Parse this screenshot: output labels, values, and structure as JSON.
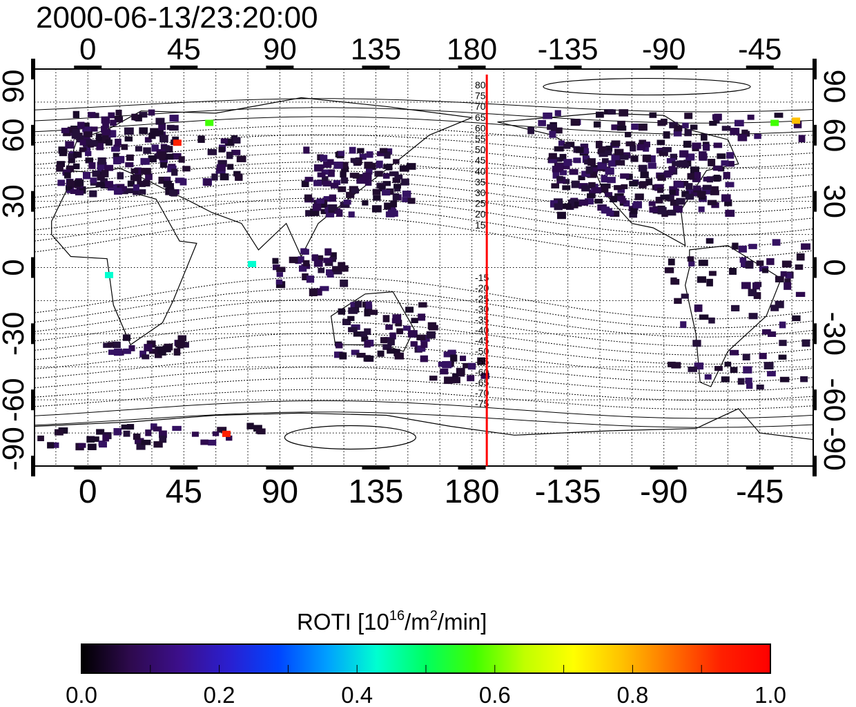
{
  "title": "2000-06-13/23:20:00",
  "map": {
    "type": "global-map",
    "projection": "cylindrical",
    "lon_range": [
      -25,
      340
    ],
    "lat_range": [
      -90,
      90
    ],
    "lon_tick_values": [
      0,
      45,
      90,
      135,
      180,
      225,
      270,
      315
    ],
    "lon_tick_labels": [
      "0",
      "45",
      "90",
      "135",
      "180",
      "-135",
      "-90",
      "-45"
    ],
    "lat_tick_values": [
      90,
      60,
      30,
      0,
      -30,
      -60,
      -90
    ],
    "lat_tick_labels": [
      "90",
      "60",
      "30",
      "0",
      "-30",
      "-60",
      "-90"
    ],
    "grid": "dotted, every 15 degrees",
    "terminator_longitude": 187,
    "terminator_color": "#ff0000",
    "contour_labels_north": [
      "80",
      "75",
      "70",
      "65",
      "60",
      "55",
      "50",
      "45",
      "40",
      "35",
      "30",
      "25",
      "20",
      "15"
    ],
    "contour_labels_south": [
      "-15",
      "-20",
      "-25",
      "-30",
      "-35",
      "-40",
      "-45",
      "-50",
      "-55",
      "-60",
      "-65",
      "-70",
      "-75"
    ]
  },
  "colorbar": {
    "label_main": "ROTI  [10",
    "label_sup1": "16",
    "label_mid": "/m",
    "label_sup2": "2",
    "label_end": "/min]",
    "ticks": [
      "0.0",
      "0.2",
      "0.4",
      "0.6",
      "0.8",
      "1.0"
    ],
    "colors": [
      "#000000",
      "#2e0a4e",
      "#3c0f8c",
      "#2a1fd0",
      "#0044ff",
      "#00a0ff",
      "#00ffd0",
      "#00ff60",
      "#40ff00",
      "#c0ff00",
      "#ffff00",
      "#ffc000",
      "#ff7000",
      "#ff2000",
      "#ff0000"
    ],
    "range": [
      0.0,
      1.0
    ]
  },
  "chart_data": {
    "type": "heatmap",
    "title": "2000-06-13/23:20:00",
    "variable": "ROTI  [10^16/m^2/min]",
    "value_range": [
      0.0,
      1.0
    ],
    "dominant_value": "mostly 0.0-0.15 (dark purple) over land receiver regions",
    "highlights": [
      {
        "lon": 40,
        "lat": 58,
        "value": 0.95
      },
      {
        "lon": 63,
        "lat": -74,
        "value": 0.9
      },
      {
        "lon": 55,
        "lat": 67,
        "value": 0.55
      },
      {
        "lon": 320,
        "lat": 67,
        "value": 0.6
      },
      {
        "lon": 330,
        "lat": 68,
        "value": 0.8
      },
      {
        "lon": 8,
        "lat": -2,
        "value": 0.45
      },
      {
        "lon": 75,
        "lat": 3,
        "value": 0.4
      }
    ]
  }
}
